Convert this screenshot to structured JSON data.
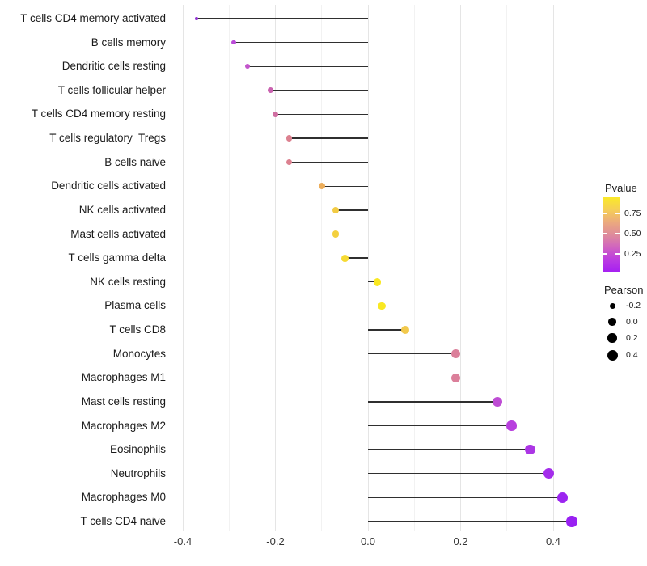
{
  "chart_data": {
    "type": "lollipop",
    "title": "",
    "xlabel": "",
    "ylabel": "",
    "x_tick_labels": [
      "-0.4",
      "-0.2",
      "0.0",
      "0.2",
      "0.4"
    ],
    "x_ticks": [
      -0.4,
      -0.2,
      0.0,
      0.2,
      0.4
    ],
    "x_minor_ticks": [
      -0.3,
      -0.1,
      0.1,
      0.3
    ],
    "xlim": [
      -0.43,
      0.51
    ],
    "grid": "vertical gridlines only, white background",
    "rows": [
      {
        "label": "T cells CD4 memory activated",
        "pearson": -0.37,
        "color": "#9233d4"
      },
      {
        "label": "B cells memory",
        "pearson": -0.29,
        "color": "#bb4bd8"
      },
      {
        "label": "Dendritic cells resting",
        "pearson": -0.26,
        "color": "#c355cc"
      },
      {
        "label": "T cells follicular helper",
        "pearson": -0.21,
        "color": "#ca62b0"
      },
      {
        "label": "T cells CD4 memory resting",
        "pearson": -0.2,
        "color": "#d06fa2"
      },
      {
        "label": "T cells regulatory  Tregs",
        "pearson": -0.17,
        "color": "#dc8190"
      },
      {
        "label": "B cells naive",
        "pearson": -0.17,
        "color": "#dc8190"
      },
      {
        "label": "Dendritic cells activated",
        "pearson": -0.1,
        "color": "#edae5b"
      },
      {
        "label": "NK cells activated",
        "pearson": -0.07,
        "color": "#f2cb45"
      },
      {
        "label": "Mast cells activated",
        "pearson": -0.07,
        "color": "#f3d03f"
      },
      {
        "label": "T cells gamma delta",
        "pearson": -0.05,
        "color": "#f6da33"
      },
      {
        "label": "NK cells resting",
        "pearson": 0.02,
        "color": "#f9e822"
      },
      {
        "label": "Plasma cells",
        "pearson": 0.03,
        "color": "#f9e822"
      },
      {
        "label": "T cells CD8",
        "pearson": 0.08,
        "color": "#f2c94c"
      },
      {
        "label": "Monocytes",
        "pearson": 0.19,
        "color": "#db7f9a"
      },
      {
        "label": "Macrophages M1",
        "pearson": 0.19,
        "color": "#db7f9a"
      },
      {
        "label": "Mast cells resting",
        "pearson": 0.28,
        "color": "#be4dd4"
      },
      {
        "label": "Macrophages M2",
        "pearson": 0.31,
        "color": "#b840de"
      },
      {
        "label": "Eosinophils",
        "pearson": 0.35,
        "color": "#ac36e5"
      },
      {
        "label": "Neutrophils",
        "pearson": 0.39,
        "color": "#a42deb"
      },
      {
        "label": "Macrophages M0",
        "pearson": 0.42,
        "color": "#9c25f0"
      },
      {
        "label": "T cells CD4 naive",
        "pearson": 0.44,
        "color": "#9921f2"
      }
    ],
    "legend": {
      "pvalue": {
        "title": "Pvalue",
        "tick_labels": [
          "0.75",
          "0.50",
          "0.25"
        ],
        "gradient_top_to_bottom": [
          "#fae929",
          "#f5ce57",
          "#eba97e",
          "#de8b9c",
          "#d063c0",
          "#bb3be2",
          "#a51ff2"
        ]
      },
      "pearson": {
        "title": "Pearson",
        "key_values": [
          "-0.2",
          "0.0",
          "0.2",
          "0.4"
        ],
        "key_color": "#000000"
      }
    }
  },
  "colors": {
    "stem": "#2f2f2f",
    "grid_major": "#e5e5e5",
    "grid_minor": "#f2f2f2",
    "axis_text": "#333333",
    "label_text": "#1a1a1a",
    "background": "#ffffff"
  }
}
